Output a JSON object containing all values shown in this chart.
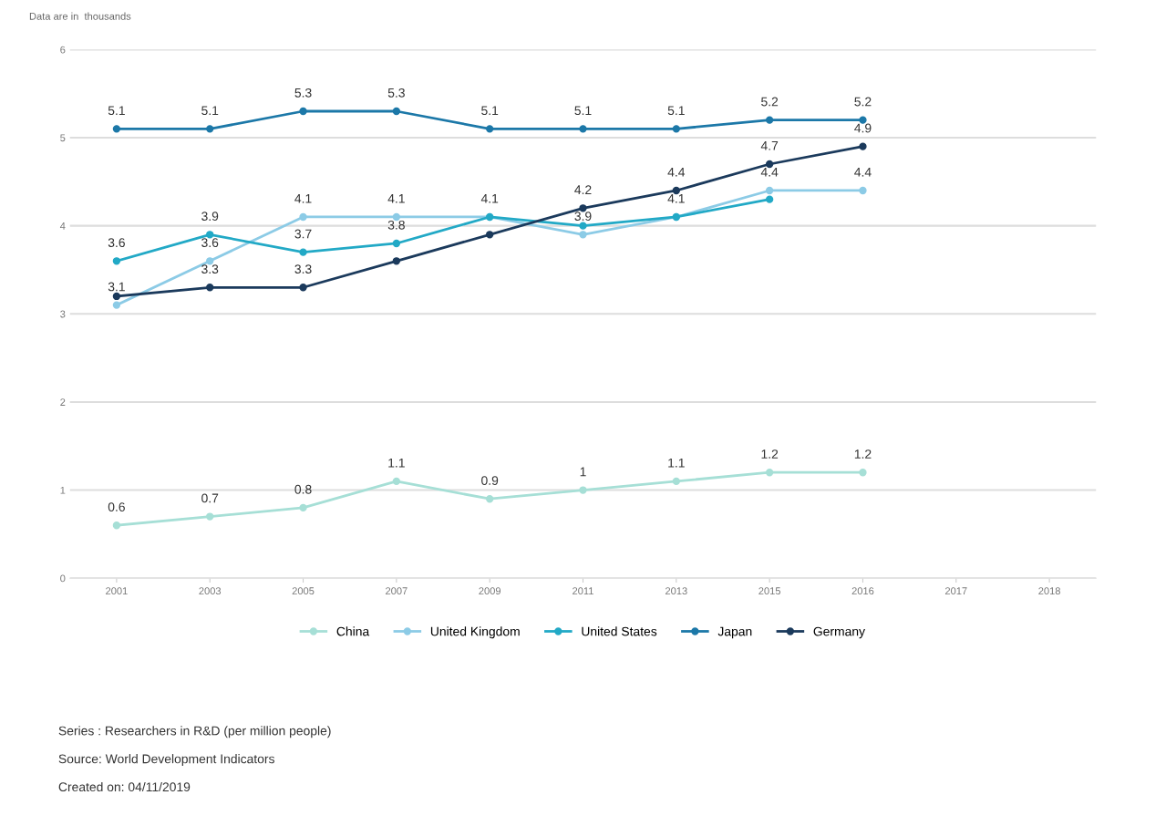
{
  "chart_data": {
    "type": "line",
    "subtitle": "Data are in  thousands",
    "categories": [
      "2001",
      "2003",
      "2005",
      "2007",
      "2009",
      "2011",
      "2013",
      "2015",
      "2016",
      "2017",
      "2018"
    ],
    "series": [
      {
        "name": "China",
        "color": "#a6dfd6",
        "values": [
          0.6,
          0.7,
          0.8,
          1.1,
          0.9,
          1,
          1.1,
          1.2,
          1.2,
          null,
          null
        ],
        "value_labels": [
          "0.6",
          "0.7",
          "0.8",
          "1.1",
          "0.9",
          "1",
          "1.1",
          "1.2",
          "1.2",
          null,
          null
        ]
      },
      {
        "name": "United Kingdom",
        "color": "#8ccbe6",
        "values": [
          3.1,
          3.6,
          4.1,
          4.1,
          4.1,
          3.9,
          4.1,
          4.4,
          4.4,
          null,
          null
        ],
        "value_labels": [
          "3.1",
          "3.6",
          "4.1",
          "4.1",
          "4.1",
          "3.9",
          "4.1",
          "4.4",
          "4.4",
          null,
          null
        ]
      },
      {
        "name": "United States",
        "color": "#22a9c6",
        "values": [
          3.6,
          3.9,
          3.7,
          3.8,
          4.1,
          4.0,
          4.1,
          4.3,
          null,
          null,
          null
        ],
        "value_labels": [
          "3.6",
          "3.9",
          "3.7",
          "3.8",
          null,
          null,
          null,
          null,
          null,
          null,
          null
        ]
      },
      {
        "name": "Japan",
        "color": "#1c78a8",
        "values": [
          5.1,
          5.1,
          5.3,
          5.3,
          5.1,
          5.1,
          5.1,
          5.2,
          5.2,
          null,
          null
        ],
        "value_labels": [
          "5.1",
          "5.1",
          "5.3",
          "5.3",
          "5.1",
          "5.1",
          "5.1",
          "5.2",
          "5.2",
          null,
          null
        ]
      },
      {
        "name": "Germany",
        "color": "#1b3a5c",
        "values": [
          3.2,
          3.3,
          3.3,
          3.6,
          3.9,
          4.2,
          4.4,
          4.7,
          4.9,
          null,
          null
        ],
        "value_labels": [
          null,
          "3.3",
          "3.3",
          null,
          null,
          "4.2",
          "4.4",
          "4.7",
          "4.9",
          null,
          null
        ]
      }
    ],
    "ylim": [
      0,
      6
    ],
    "yticks": [
      0,
      1,
      2,
      3,
      4,
      5,
      6
    ],
    "grid": "y",
    "legend": "bottom",
    "marker": "circle",
    "line_style": "solid",
    "annotations": [
      "Series : Researchers in R&D (per million people)",
      "Source: World Development Indicators",
      "Created on: 04/11/2019"
    ]
  }
}
